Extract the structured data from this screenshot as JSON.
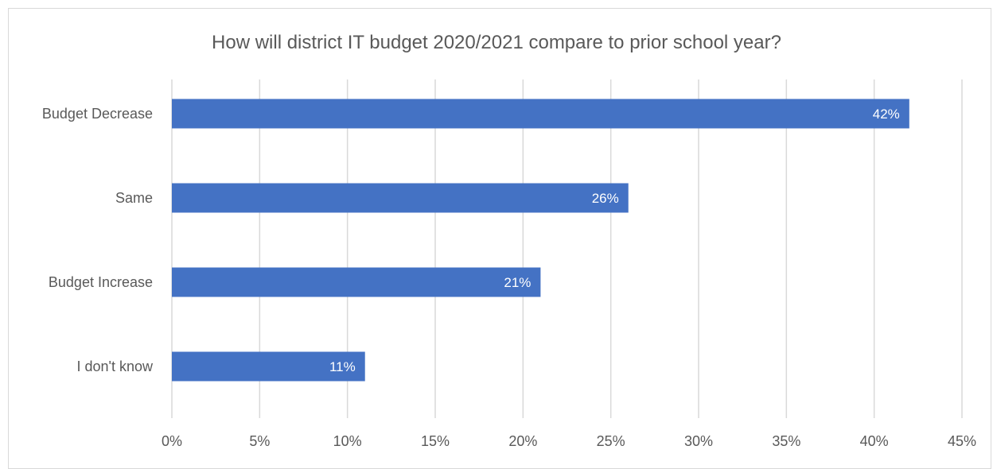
{
  "chart_data": {
    "type": "bar",
    "orientation": "horizontal",
    "title": "How will district IT budget 2020/2021 compare to prior school year?",
    "xlabel": "",
    "ylabel": "",
    "categories": [
      "Budget Decrease",
      "Same",
      "Budget Increase",
      "I don't know"
    ],
    "values": [
      42,
      26,
      21,
      11
    ],
    "data_labels": [
      "42%",
      "26%",
      "21%",
      "11%"
    ],
    "xlim": [
      0,
      45
    ],
    "x_ticks": [
      0,
      5,
      10,
      15,
      20,
      25,
      30,
      35,
      40,
      45
    ],
    "x_tick_labels": [
      "0%",
      "5%",
      "10%",
      "15%",
      "20%",
      "25%",
      "30%",
      "35%",
      "40%",
      "45%"
    ],
    "grid": true,
    "legend": "none",
    "bar_color": "#4472c4",
    "grid_color": "#d9d9d9"
  }
}
